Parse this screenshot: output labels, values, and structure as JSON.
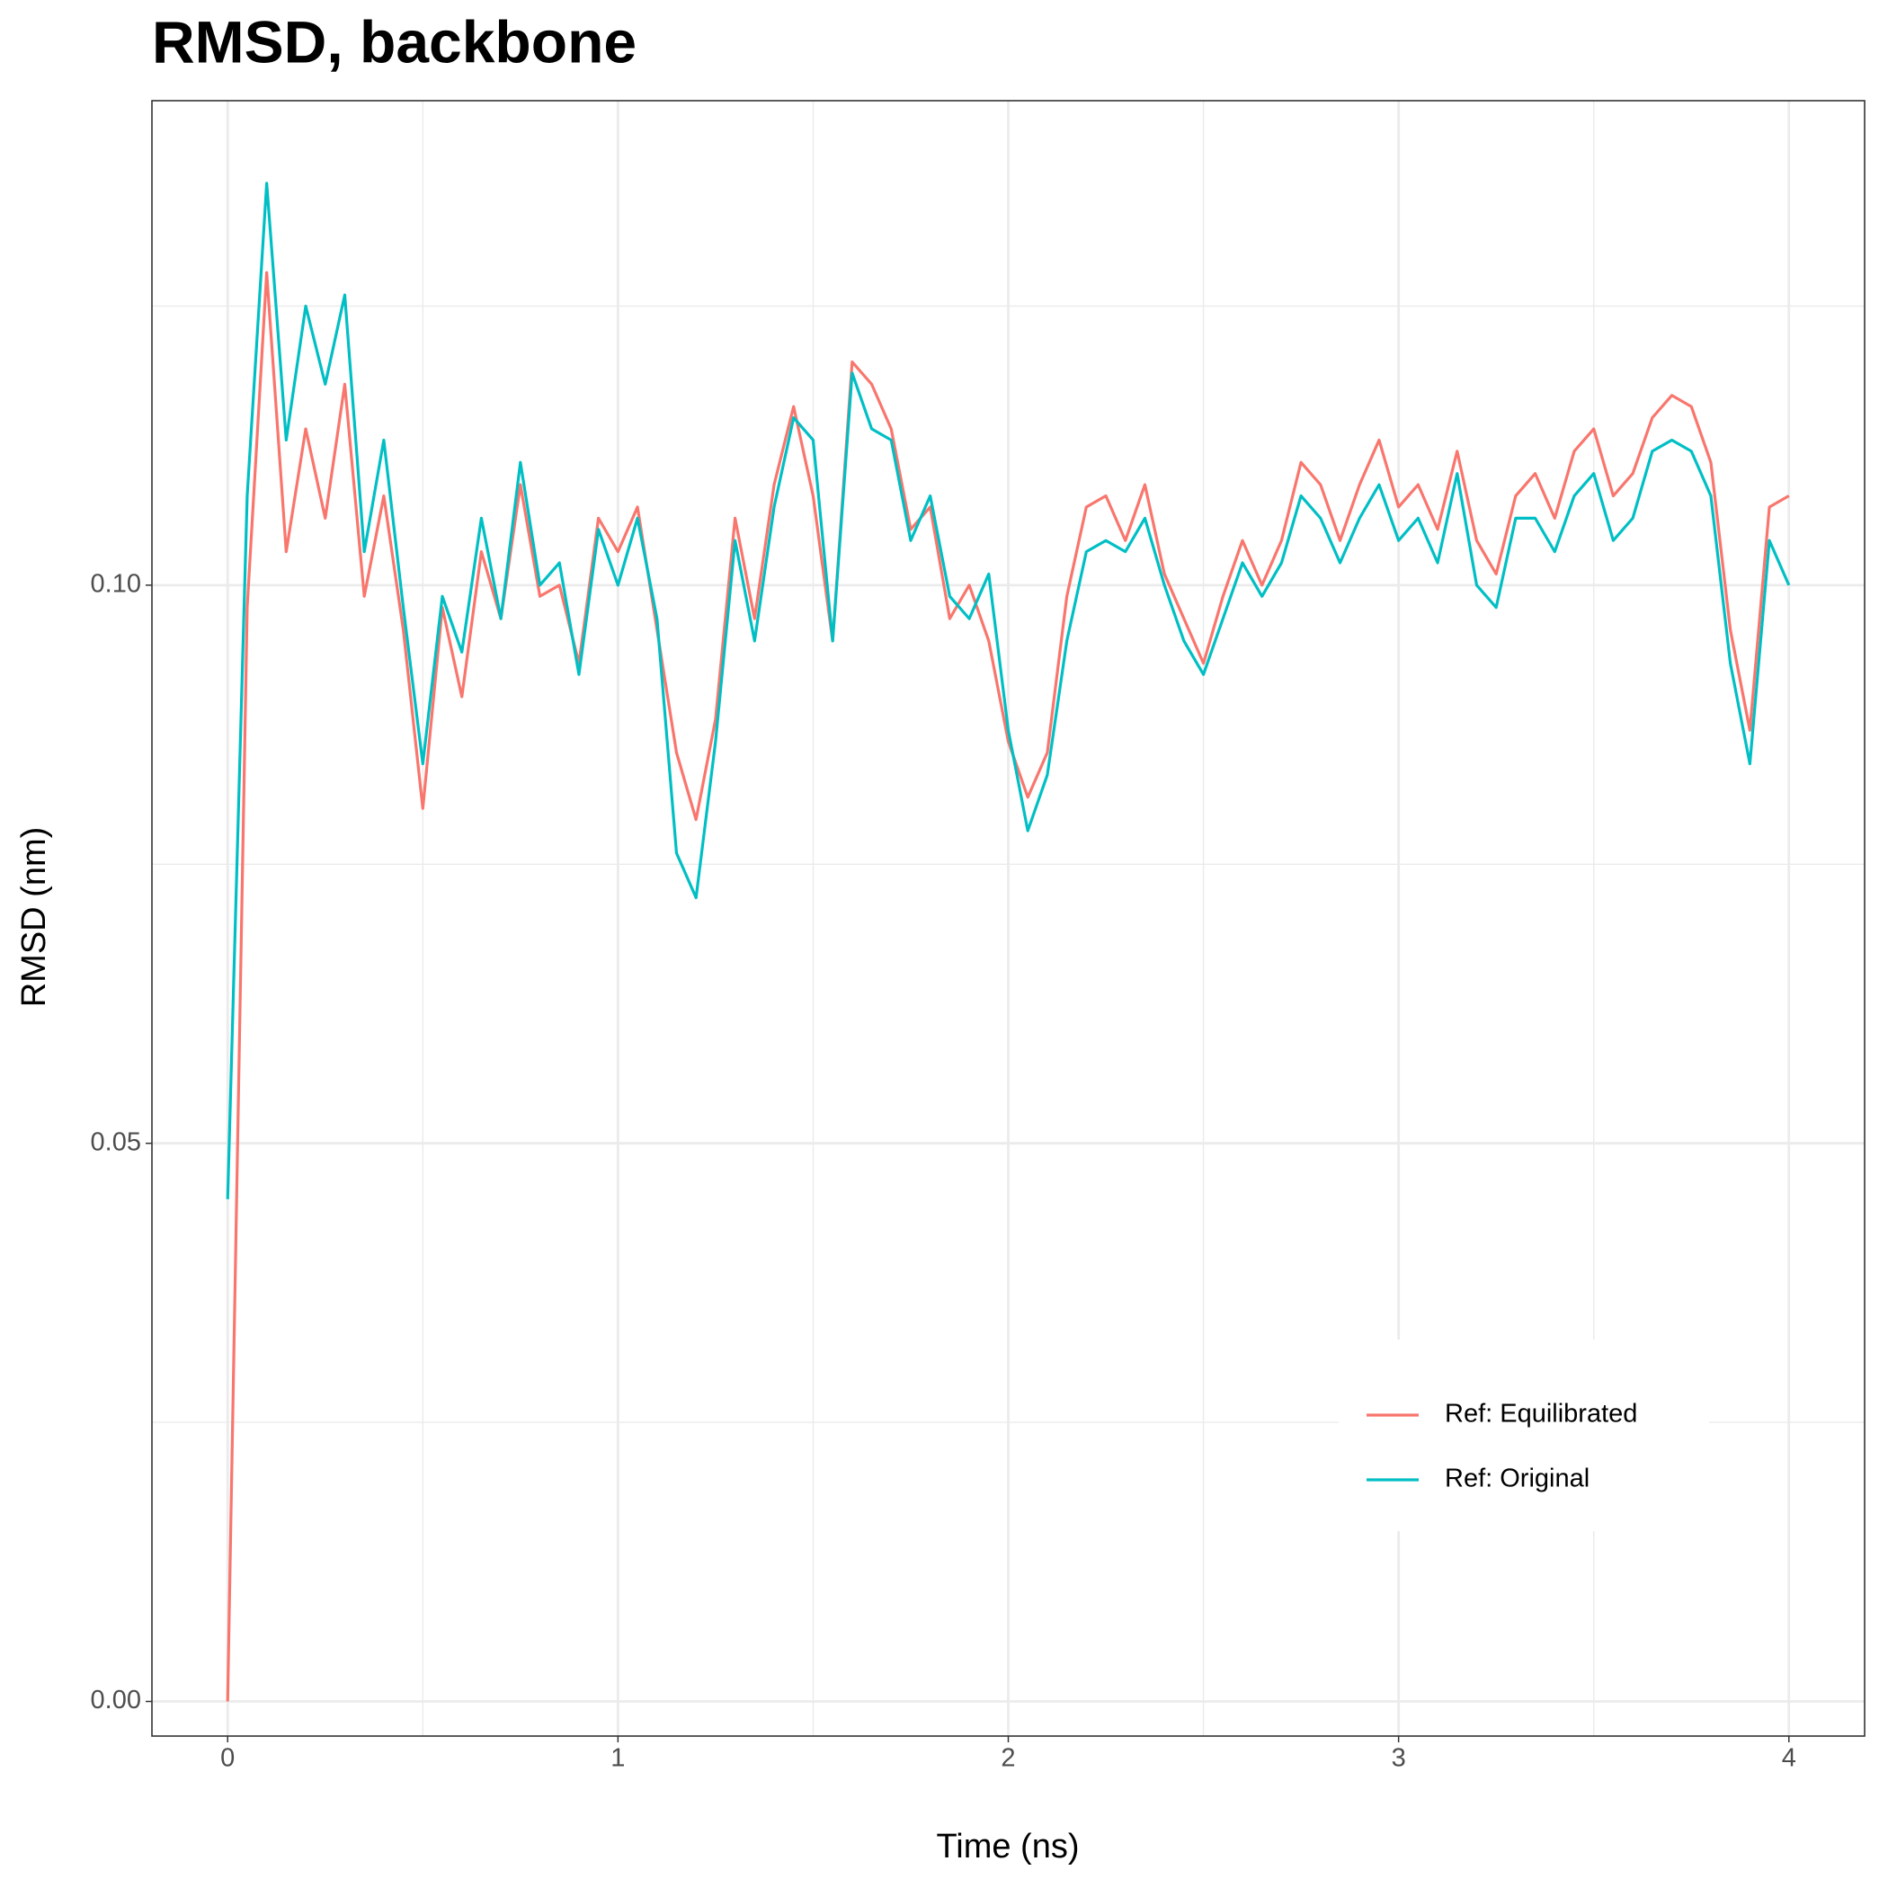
{
  "chart_data": {
    "type": "line",
    "title": "RMSD, backbone",
    "x_label": "Time (ns)",
    "y_label": "RMSD (nm)",
    "x": [
      0,
      0.05,
      0.1,
      0.15,
      0.2,
      0.25,
      0.3,
      0.35,
      0.4,
      0.45,
      0.5,
      0.55,
      0.6,
      0.65,
      0.7,
      0.75,
      0.8,
      0.85,
      0.9,
      0.95,
      1,
      1.05,
      1.1,
      1.15,
      1.2,
      1.25,
      1.3,
      1.35,
      1.4,
      1.45,
      1.5,
      1.55,
      1.6,
      1.65,
      1.7,
      1.75,
      1.8,
      1.85,
      1.9,
      1.95,
      2,
      2.05,
      2.1,
      2.15,
      2.2,
      2.25,
      2.3,
      2.35,
      2.4,
      2.45,
      2.5,
      2.55,
      2.6,
      2.65,
      2.7,
      2.75,
      2.8,
      2.85,
      2.9,
      2.95,
      3,
      3.05,
      3.1,
      3.15,
      3.2,
      3.25,
      3.3,
      3.35,
      3.4,
      3.45,
      3.5,
      3.55,
      3.6,
      3.65,
      3.7,
      3.75,
      3.8,
      3.85,
      3.9,
      3.95,
      4
    ],
    "series": [
      {
        "name": "Ref: Equilibrated",
        "color": "#f8766d",
        "values": [
          0.0,
          0.098,
          0.128,
          0.103,
          0.114,
          0.106,
          0.118,
          0.099,
          0.108,
          0.096,
          0.08,
          0.098,
          0.09,
          0.103,
          0.097,
          0.109,
          0.099,
          0.1,
          0.093,
          0.106,
          0.103,
          0.107,
          0.096,
          0.085,
          0.079,
          0.088,
          0.106,
          0.097,
          0.109,
          0.116,
          0.108,
          0.095,
          0.12,
          0.118,
          0.114,
          0.105,
          0.107,
          0.097,
          0.1,
          0.095,
          0.086,
          0.081,
          0.085,
          0.099,
          0.107,
          0.108,
          0.104,
          0.109,
          0.101,
          0.097,
          0.093,
          0.099,
          0.104,
          0.1,
          0.104,
          0.111,
          0.109,
          0.104,
          0.109,
          0.113,
          0.107,
          0.109,
          0.105,
          0.112,
          0.104,
          0.101,
          0.108,
          0.11,
          0.106,
          0.112,
          0.114,
          0.108,
          0.11,
          0.115,
          0.117,
          0.116,
          0.111,
          0.096,
          0.087,
          0.107,
          0.108
        ]
      },
      {
        "name": "Ref: Original",
        "color": "#00bfc4",
        "values": [
          0.045,
          0.108,
          0.136,
          0.113,
          0.125,
          0.118,
          0.126,
          0.103,
          0.113,
          0.098,
          0.084,
          0.099,
          0.094,
          0.106,
          0.097,
          0.111,
          0.1,
          0.102,
          0.092,
          0.105,
          0.1,
          0.106,
          0.097,
          0.076,
          0.072,
          0.086,
          0.104,
          0.095,
          0.107,
          0.115,
          0.113,
          0.095,
          0.119,
          0.114,
          0.113,
          0.104,
          0.108,
          0.099,
          0.097,
          0.101,
          0.087,
          0.078,
          0.083,
          0.095,
          0.103,
          0.104,
          0.103,
          0.106,
          0.1,
          0.095,
          0.092,
          0.097,
          0.102,
          0.099,
          0.102,
          0.108,
          0.106,
          0.102,
          0.106,
          0.109,
          0.104,
          0.106,
          0.102,
          0.11,
          0.1,
          0.098,
          0.106,
          0.106,
          0.103,
          0.108,
          0.11,
          0.104,
          0.106,
          0.112,
          0.113,
          0.112,
          0.108,
          0.093,
          0.084,
          0.104,
          0.1
        ]
      }
    ],
    "xlim": [
      -0.194,
      4.194
    ],
    "xticks": [
      0,
      1,
      2,
      3,
      4
    ],
    "xminorticks": [
      0.5,
      1.5,
      2.5,
      3.5
    ],
    "ylim": [
      -0.0031,
      0.1434
    ],
    "yticks": [
      {
        "value": 0,
        "label": "0.00"
      },
      0.05,
      {
        "value": 0.1,
        "label": "0.10"
      }
    ],
    "yminorticks": [
      0.025,
      0.075,
      0.125
    ],
    "grid": true,
    "legend_position": "bottom-right"
  }
}
